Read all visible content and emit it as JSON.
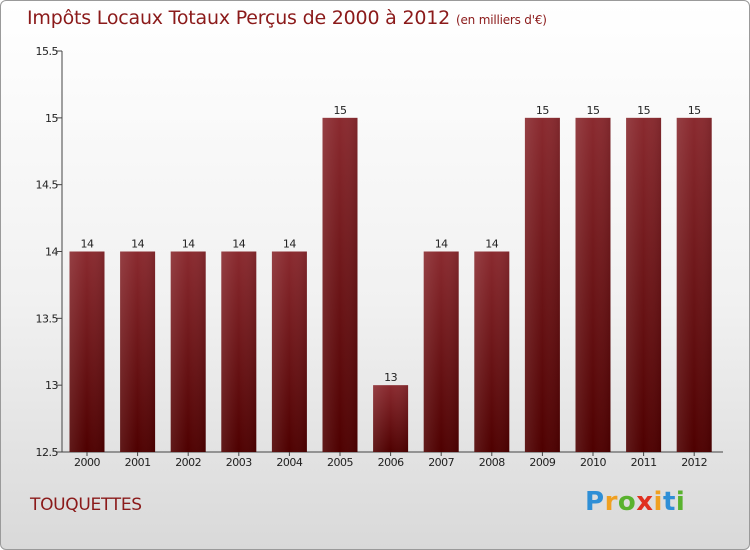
{
  "title": "Impôts Locaux Totaux Perçus de 2000 à 2012",
  "title_unit": "(en milliers d'€)",
  "commune": "TOUQUETTES",
  "logo_text": "Proxiti",
  "chart_data": {
    "type": "bar",
    "title": "Impôts Locaux Totaux Perçus de 2000 à 2012",
    "ylabel": "",
    "xlabel": "",
    "categories": [
      "2000",
      "2001",
      "2002",
      "2003",
      "2004",
      "2005",
      "2006",
      "2007",
      "2008",
      "2009",
      "2010",
      "2011",
      "2012"
    ],
    "values": [
      14,
      14,
      14,
      14,
      14,
      15,
      13,
      14,
      14,
      15,
      15,
      15,
      15
    ],
    "data_labels": [
      "14",
      "14",
      "14",
      "14",
      "14",
      "15",
      "13",
      "14",
      "14",
      "15",
      "15",
      "15",
      "15"
    ],
    "ylim": [
      12.5,
      15.5
    ],
    "yticks": [
      12.5,
      13,
      13.5,
      14,
      14.5,
      15,
      15.5
    ],
    "ytick_labels": [
      "12.5",
      "13",
      "13.5",
      "14",
      "14.5",
      "15",
      "15.5"
    ],
    "grid": false,
    "bar_color": "#7a1a1a"
  }
}
